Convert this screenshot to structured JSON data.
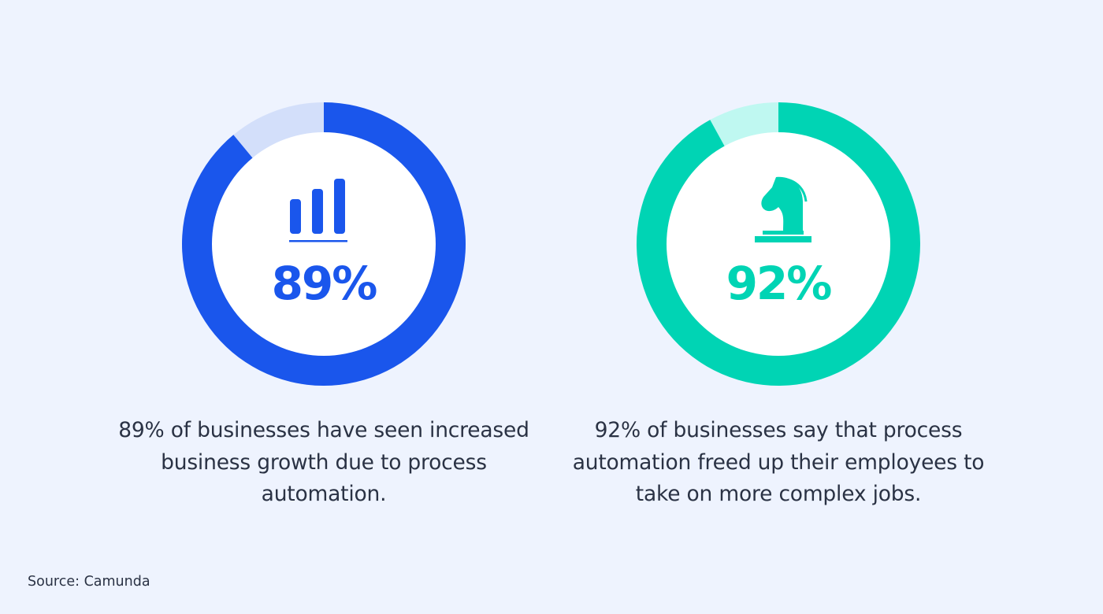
{
  "chart_data": [
    {
      "type": "donut",
      "value": 89,
      "max": 100,
      "label": "89%",
      "description": "89% of businesses have seen increased business growth due to process automation.",
      "icon": "bar-chart-icon",
      "colors": {
        "fill": "#1a56ec",
        "remainder": "#d3dffa",
        "center": "#ffffff"
      }
    },
    {
      "type": "donut",
      "value": 92,
      "max": 100,
      "label": "92%",
      "description": "92% of businesses say that process automation freed up their employees to take on more complex jobs.",
      "icon": "chess-knight-icon",
      "colors": {
        "fill": "#00d4b4",
        "remainder": "#bff8f1",
        "center": "#ffffff"
      }
    }
  ],
  "source": "Source: Camunda",
  "page": {
    "background": "#eef3fe",
    "text_color": "#2a3244"
  }
}
